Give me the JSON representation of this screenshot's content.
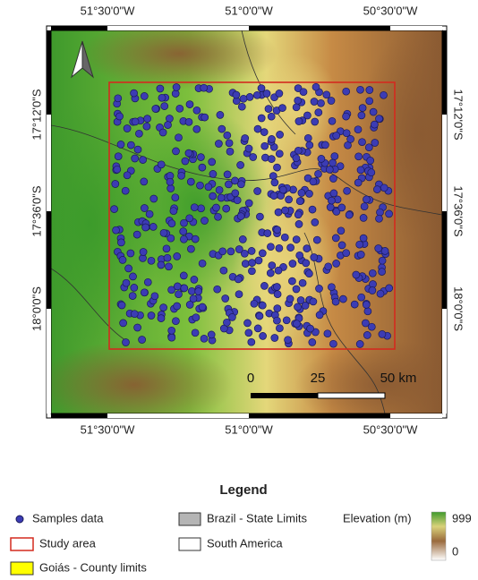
{
  "map": {
    "x_labels_top": [
      "51°30'0\"W",
      "51°0'0\"W",
      "50°30'0\"W"
    ],
    "x_labels_bottom": [
      "51°30'0\"W",
      "51°0'0\"W",
      "50°30'0\"W"
    ],
    "y_labels_left": [
      "17°12'0\"S",
      "17°36'0\"S",
      "18°0'0\"S"
    ],
    "y_labels_right": [
      "17°12'0\"S",
      "17°36'0\"S",
      "18°0'0\"S"
    ],
    "scale_bar": [
      "0",
      "25",
      "50 km"
    ]
  },
  "legend": {
    "title": "Legend",
    "samples": "Samples data",
    "study_area": "Study area",
    "county_limits": "Goiás - County limits",
    "state_limits": "Brazil - State Limits",
    "south_america": "South America",
    "elevation": {
      "title": "Elevation (m)",
      "max": 999,
      "min": 0
    }
  }
}
